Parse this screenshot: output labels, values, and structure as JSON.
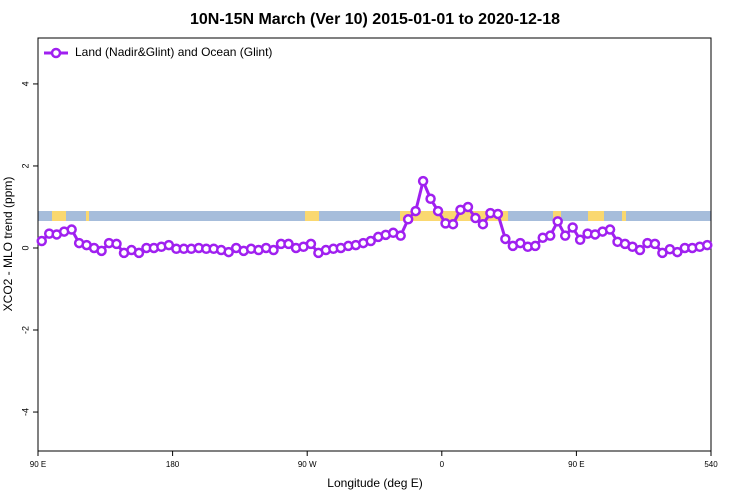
{
  "chart_data": {
    "type": "line",
    "title": "10N-15N March (Ver 10)   2015-01-01 to 2020-12-18",
    "x_label": "Longitude (deg E)",
    "y_label": "XCO2 - MLO trend (ppm)",
    "xlim": [
      90,
      540
    ],
    "ylim": [
      -4.95,
      5.12
    ],
    "xticks": [
      {
        "value": 90,
        "label": "90 E"
      },
      180,
      {
        "value": 270,
        "label": "90 W"
      },
      {
        "value": 360,
        "label": "0"
      },
      {
        "value": 450,
        "label": "90 E"
      },
      540
    ],
    "yticks": [
      -4,
      -2,
      0,
      2,
      4
    ],
    "legend": "upper left",
    "x": [
      92.5,
      97.5,
      102.5,
      107.5,
      112.5,
      117.5,
      122.5,
      127.5,
      132.5,
      137.5,
      142.5,
      147.5,
      152.5,
      157.5,
      162.5,
      167.5,
      172.5,
      177.5,
      182.5,
      187.5,
      192.5,
      197.5,
      202.5,
      207.5,
      212.5,
      217.5,
      222.5,
      227.5,
      232.5,
      237.5,
      242.5,
      247.5,
      252.5,
      257.5,
      262.5,
      267.5,
      272.5,
      277.5,
      282.5,
      287.5,
      292.5,
      297.5,
      302.5,
      307.5,
      312.5,
      317.5,
      322.5,
      327.5,
      332.5,
      337.5,
      342.5,
      347.5,
      352.5,
      357.5,
      362.5,
      367.5,
      372.5,
      377.5,
      382.5,
      387.5,
      392.5,
      397.5,
      402.5,
      407.5,
      412.5,
      417.5,
      422.5,
      427.5,
      432.5,
      437.5,
      442.5,
      447.5,
      452.5,
      457.5,
      462.5,
      467.5,
      472.5,
      477.5,
      482.5,
      487.5,
      492.5,
      497.5,
      502.5,
      507.5,
      512.5,
      517.5,
      522.5,
      527.5,
      532.5,
      537.5
    ],
    "series": [
      {
        "name": "Land (Nadir&Glint) and Ocean (Glint)",
        "color": "#a020f0",
        "values": [
          0.17,
          0.35,
          0.33,
          0.4,
          0.45,
          0.12,
          0.07,
          0.0,
          -0.07,
          0.12,
          0.1,
          -0.12,
          -0.05,
          -0.12,
          0,
          0,
          0.03,
          0.07,
          -0.02,
          -0.02,
          -0.02,
          0,
          -0.02,
          -0.02,
          -0.05,
          -0.1,
          0,
          -0.07,
          -0.02,
          -0.05,
          0,
          -0.05,
          0.1,
          0.1,
          0,
          0.03,
          0.1,
          -0.12,
          -0.05,
          -0.02,
          0,
          0.05,
          0.07,
          0.12,
          0.17,
          0.27,
          0.32,
          0.37,
          0.3,
          0.7,
          0.9,
          1.63,
          1.2,
          0.9,
          0.6,
          0.58,
          0.93,
          1.0,
          0.73,
          0.58,
          0.85,
          0.83,
          0.22,
          0.05,
          0.12,
          0.03,
          0.05,
          0.25,
          0.3,
          0.65,
          0.3,
          0.5,
          0.2,
          0.35,
          0.33,
          0.4,
          0.45,
          0.15,
          0.1,
          0.03,
          -0.05,
          0.12,
          0.1,
          -0.12,
          -0.03,
          -0.1,
          0,
          0,
          0.03,
          0.07
        ]
      }
    ]
  }
}
